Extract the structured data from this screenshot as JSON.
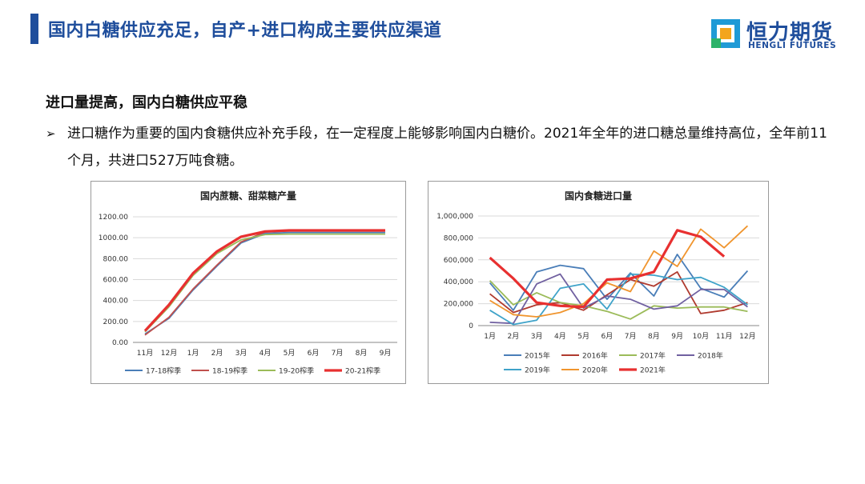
{
  "header": {
    "title": "国内白糖供应充足，自产+进口构成主要供应渠道",
    "logo_cn": "恒力期货",
    "logo_en": "HENGLI FUTURES"
  },
  "content": {
    "subheading": "进口量提高，国内白糖供应平稳",
    "bullet_marker": "➢",
    "bullet_text": "进口糖作为重要的国内食糖供应补充手段，在一定程度上能够影响国内白糖价。2021年全年的进口糖总量维持高位，全年前11个月，共进口527万吨食糖。"
  },
  "chart_data": [
    {
      "type": "line",
      "title": "国内蔗糖、甜菜糖产量",
      "categories": [
        "11月",
        "12月",
        "1月",
        "2月",
        "3月",
        "4月",
        "5月",
        "6月",
        "7月",
        "8月",
        "9月"
      ],
      "ylim": [
        0,
        1200
      ],
      "yticks": [
        "0.00",
        "200.00",
        "400.00",
        "600.00",
        "800.00",
        "1000.00",
        "1200.00"
      ],
      "series": [
        {
          "name": "17-18榨季",
          "color": "#4a7eb8",
          "values": [
            80,
            230,
            500,
            730,
            950,
            1040,
            1050,
            1050,
            1050,
            1050,
            1050
          ]
        },
        {
          "name": "18-19榨季",
          "color": "#c0504d",
          "values": [
            70,
            240,
            510,
            740,
            960,
            1055,
            1065,
            1065,
            1065,
            1065,
            1065
          ]
        },
        {
          "name": "19-20榨季",
          "color": "#9bbb59",
          "values": [
            100,
            340,
            640,
            850,
            980,
            1030,
            1035,
            1035,
            1035,
            1035,
            1035
          ]
        },
        {
          "name": "20-21榨季",
          "color": "#e83030",
          "values": [
            110,
            360,
            660,
            870,
            1010,
            1060,
            1070,
            1070,
            1070,
            1070,
            1070
          ]
        }
      ]
    },
    {
      "type": "line",
      "title": "国内食糖进口量",
      "categories": [
        "1月",
        "2月",
        "3月",
        "4月",
        "5月",
        "6月",
        "7月",
        "8月",
        "9月",
        "10月",
        "11月",
        "12月"
      ],
      "ylim": [
        0,
        1000000
      ],
      "yticks": [
        "0",
        "200,000",
        "400,000",
        "600,000",
        "800,000",
        "1,000,000"
      ],
      "series": [
        {
          "name": "2015年",
          "color": "#4a7eb8",
          "values": [
            390000,
            140000,
            490000,
            550000,
            520000,
            240000,
            480000,
            270000,
            650000,
            340000,
            260000,
            500000
          ]
        },
        {
          "name": "2016年",
          "color": "#b03a2e",
          "values": [
            290000,
            120000,
            190000,
            210000,
            140000,
            280000,
            420000,
            360000,
            490000,
            110000,
            140000,
            210000
          ]
        },
        {
          "name": "2017年",
          "color": "#9bbb59",
          "values": [
            410000,
            190000,
            300000,
            210000,
            180000,
            130000,
            60000,
            180000,
            160000,
            170000,
            170000,
            130000
          ]
        },
        {
          "name": "2018年",
          "color": "#7060a0",
          "values": [
            30000,
            20000,
            380000,
            470000,
            160000,
            270000,
            240000,
            150000,
            180000,
            330000,
            330000,
            170000
          ]
        },
        {
          "name": "2019年",
          "color": "#3fa3c9",
          "values": [
            140000,
            10000,
            50000,
            340000,
            380000,
            150000,
            470000,
            460000,
            420000,
            440000,
            350000,
            190000
          ]
        },
        {
          "name": "2020年",
          "color": "#f0952e",
          "values": [
            230000,
            100000,
            80000,
            120000,
            200000,
            390000,
            310000,
            680000,
            540000,
            880000,
            710000,
            910000
          ]
        },
        {
          "name": "2021年",
          "color": "#e83030",
          "values": [
            620000,
            430000,
            210000,
            180000,
            170000,
            420000,
            430000,
            490000,
            870000,
            810000,
            630000,
            null
          ]
        }
      ]
    }
  ]
}
